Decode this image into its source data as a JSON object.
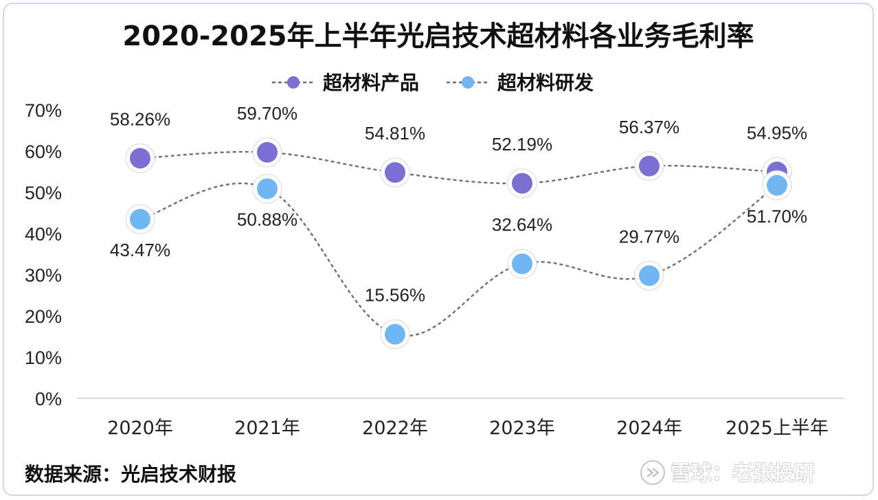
{
  "chart_data": {
    "type": "line",
    "title": "2020-2025年上半年光启技术超材料各业务毛利率",
    "categories": [
      "2020年",
      "2021年",
      "2022年",
      "2023年",
      "2024年",
      "2025上半年"
    ],
    "yticks": [
      "0%",
      "10%",
      "20%",
      "30%",
      "40%",
      "50%",
      "60%",
      "70%"
    ],
    "ylim": [
      0,
      70
    ],
    "xlabel": "",
    "ylabel": "",
    "legend_position": "top-center",
    "grid": false,
    "series": [
      {
        "name": "超材料产品",
        "values": [
          58.26,
          59.7,
          54.81,
          52.19,
          56.37,
          54.95
        ],
        "labels": [
          "58.26%",
          "59.70%",
          "54.81%",
          "52.19%",
          "56.37%",
          "54.95%"
        ],
        "label_positions": [
          "above",
          "above",
          "above",
          "above",
          "above",
          "above"
        ],
        "color": "#7b6fd3"
      },
      {
        "name": "超材料研发",
        "values": [
          43.47,
          50.88,
          15.56,
          32.64,
          29.77,
          51.7
        ],
        "labels": [
          "43.47%",
          "50.88%",
          "15.56%",
          "32.64%",
          "29.77%",
          "51.70%"
        ],
        "label_positions": [
          "below",
          "below",
          "above",
          "above",
          "above",
          "below"
        ],
        "color": "#6fb6f3"
      }
    ],
    "source_note": "数据来源：光启技术财报",
    "watermark": "雪球：老张投研"
  }
}
